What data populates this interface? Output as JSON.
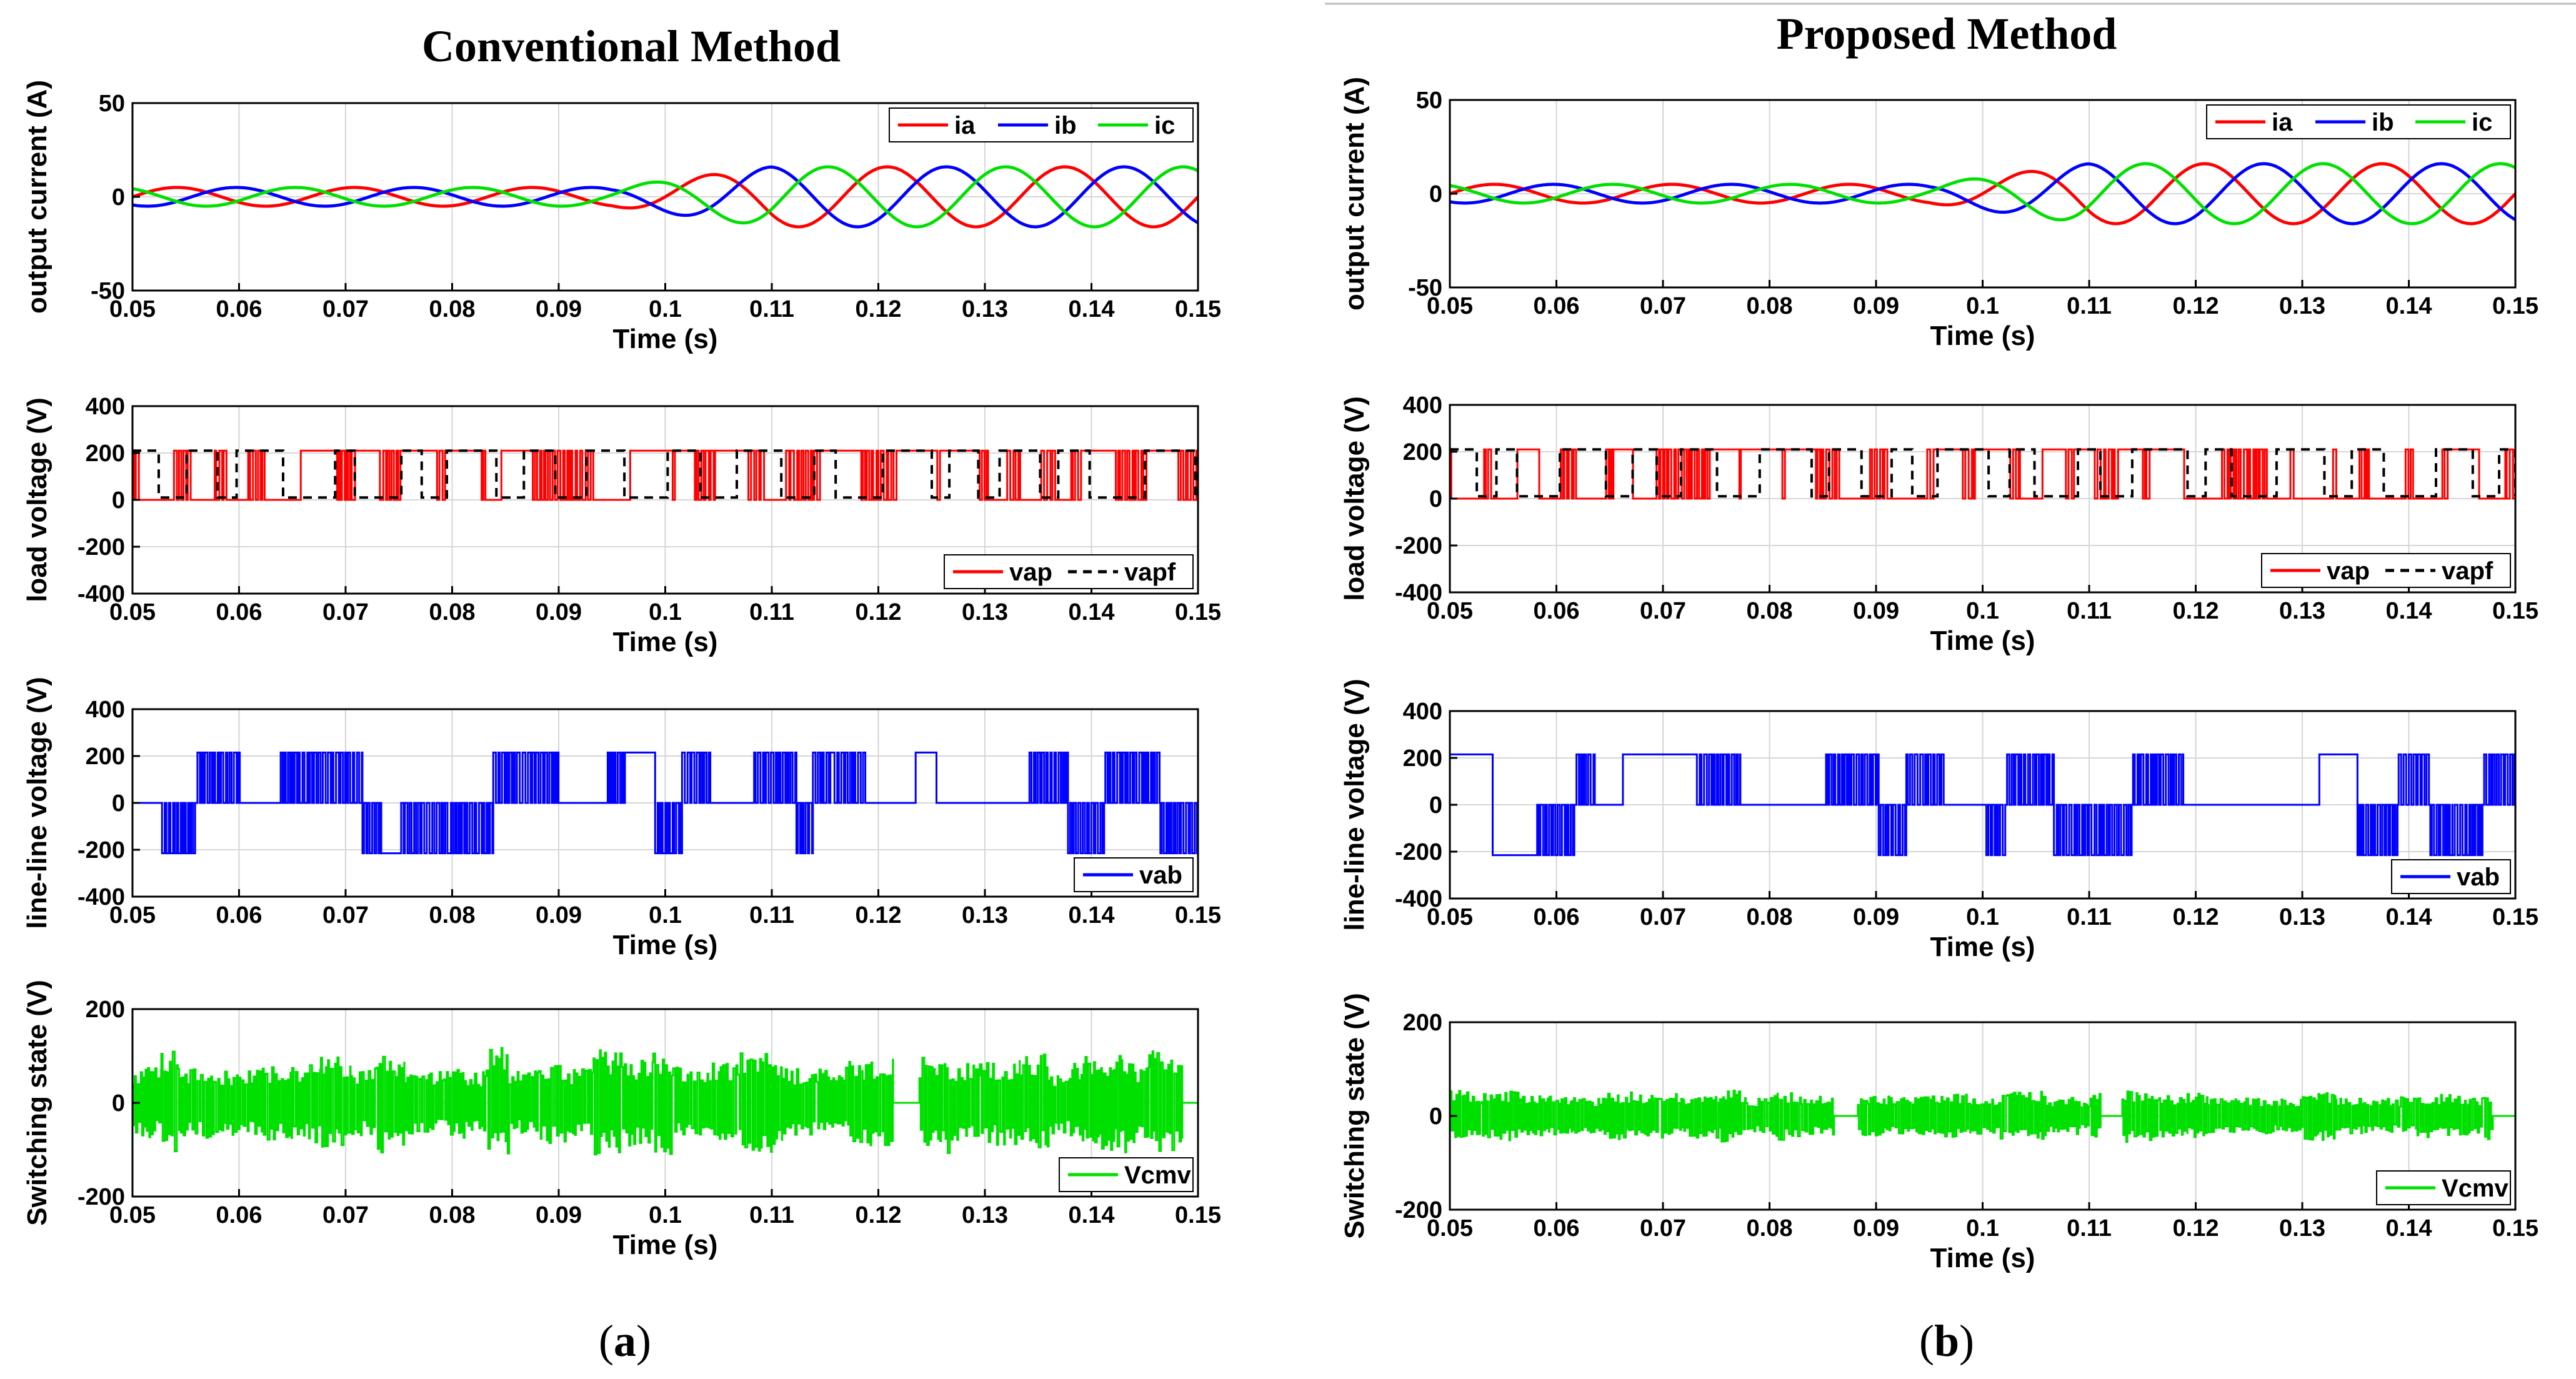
{
  "panels": [
    {
      "title": "Conventional Method",
      "label_open": "(",
      "label_letter": "a",
      "label_close": ")"
    },
    {
      "title": "Proposed Method",
      "label_open": "(",
      "label_letter": "b",
      "label_close": ")"
    }
  ],
  "chart_data": [
    {
      "panel": "a",
      "row": 0,
      "type": "line",
      "xlabel": "Time (s)",
      "ylabel": "output current (A)",
      "xlim": [
        0.05,
        0.15
      ],
      "ylim": [
        -50,
        50
      ],
      "xticks": [
        0.05,
        0.06,
        0.07,
        0.08,
        0.09,
        0.1,
        0.11,
        0.12,
        0.13,
        0.14,
        0.15
      ],
      "xtick_labels": [
        "0.05",
        "0.06",
        "0.07",
        "0.08",
        "0.09",
        "0.1",
        "0.11",
        "0.12",
        "0.13",
        "0.14",
        "0.15"
      ],
      "yticks": [
        -50,
        0,
        50
      ],
      "ytick_labels": [
        "-50",
        "0",
        "50"
      ],
      "legend_position": "top-right",
      "series": [
        {
          "name": "ia",
          "color": "#ff0000",
          "kind": "sine",
          "freq": 60,
          "phase_deg": 0,
          "amp_before": 5,
          "amp_after": 16,
          "step_time": 0.095,
          "ramp": 0.015
        },
        {
          "name": "ib",
          "color": "#0000ff",
          "kind": "sine",
          "freq": 60,
          "phase_deg": -120,
          "amp_before": 5,
          "amp_after": 16,
          "step_time": 0.095,
          "ramp": 0.015
        },
        {
          "name": "ic",
          "color": "#00e000",
          "kind": "sine",
          "freq": 60,
          "phase_deg": 120,
          "amp_before": 5,
          "amp_after": 16,
          "step_time": 0.095,
          "ramp": 0.015
        }
      ]
    },
    {
      "panel": "a",
      "row": 1,
      "type": "line",
      "xlabel": "Time (s)",
      "ylabel": "load voltage (V)",
      "xlim": [
        0.05,
        0.15
      ],
      "ylim": [
        -400,
        400
      ],
      "xticks": [
        0.05,
        0.06,
        0.07,
        0.08,
        0.09,
        0.1,
        0.11,
        0.12,
        0.13,
        0.14,
        0.15
      ],
      "xtick_labels": [
        "0.05",
        "0.06",
        "0.07",
        "0.08",
        "0.09",
        "0.1",
        "0.11",
        "0.12",
        "0.13",
        "0.14",
        "0.15"
      ],
      "yticks": [
        -400,
        -200,
        0,
        200,
        400
      ],
      "ytick_labels": [
        "-400",
        "-200",
        "0",
        "200",
        "400"
      ],
      "legend_position": "bottom-right",
      "series": [
        {
          "name": "vap",
          "color": "#ff0000",
          "kind": "pwm",
          "high": 210,
          "low": 0,
          "seed": 11
        },
        {
          "name": "vapf",
          "color": "#000000",
          "kind": "filtered",
          "dash": true,
          "high": 210,
          "low": 0,
          "seed": 11
        }
      ]
    },
    {
      "panel": "a",
      "row": 2,
      "type": "line",
      "xlabel": "Time (s)",
      "ylabel": "line-line voltage (V)",
      "xlim": [
        0.05,
        0.15
      ],
      "ylim": [
        -400,
        400
      ],
      "xticks": [
        0.05,
        0.06,
        0.07,
        0.08,
        0.09,
        0.1,
        0.11,
        0.12,
        0.13,
        0.14,
        0.15
      ],
      "xtick_labels": [
        "0.05",
        "0.06",
        "0.07",
        "0.08",
        "0.09",
        "0.1",
        "0.11",
        "0.12",
        "0.13",
        "0.14",
        "0.15"
      ],
      "yticks": [
        -400,
        -200,
        0,
        200,
        400
      ],
      "ytick_labels": [
        "-400",
        "-200",
        "0",
        "200",
        "400"
      ],
      "legend_position": "bottom-right",
      "series": [
        {
          "name": "vab",
          "color": "#0000ff",
          "kind": "bipolar",
          "high": 215,
          "low": -215,
          "seed": 23
        }
      ]
    },
    {
      "panel": "a",
      "row": 3,
      "type": "line",
      "xlabel": "Time (s)",
      "ylabel": "Switching state (V)",
      "xlim": [
        0.05,
        0.15
      ],
      "ylim": [
        -200,
        200
      ],
      "xticks": [
        0.05,
        0.06,
        0.07,
        0.08,
        0.09,
        0.1,
        0.11,
        0.12,
        0.13,
        0.14,
        0.15
      ],
      "xtick_labels": [
        "0.05",
        "0.06",
        "0.07",
        "0.08",
        "0.09",
        "0.1",
        "0.11",
        "0.12",
        "0.13",
        "0.14",
        "0.15"
      ],
      "yticks": [
        -200,
        0,
        200
      ],
      "ytick_labels": [
        "-200",
        "0",
        "200"
      ],
      "legend_position": "bottom-right",
      "series": [
        {
          "name": "Vcmv",
          "color": "#00e000",
          "kind": "cmv",
          "peak": 120,
          "seed": 37
        }
      ]
    },
    {
      "panel": "b",
      "row": 0,
      "type": "line",
      "xlabel": "Time (s)",
      "ylabel": "output current (A)",
      "xlim": [
        0.05,
        0.15
      ],
      "ylim": [
        -50,
        50
      ],
      "xticks": [
        0.05,
        0.06,
        0.07,
        0.08,
        0.09,
        0.1,
        0.11,
        0.12,
        0.13,
        0.14,
        0.15
      ],
      "xtick_labels": [
        "0.05",
        "0.06",
        "0.07",
        "0.08",
        "0.09",
        "0.1",
        "0.11",
        "0.12",
        "0.13",
        "0.14",
        "0.15"
      ],
      "yticks": [
        -50,
        0,
        50
      ],
      "ytick_labels": [
        "-50",
        "0",
        "50"
      ],
      "legend_position": "top-right",
      "series": [
        {
          "name": "ia",
          "color": "#ff0000",
          "kind": "sine",
          "freq": 60,
          "phase_deg": 0,
          "amp_before": 5,
          "amp_after": 16,
          "step_time": 0.095,
          "ramp": 0.015
        },
        {
          "name": "ib",
          "color": "#0000ff",
          "kind": "sine",
          "freq": 60,
          "phase_deg": -120,
          "amp_before": 5,
          "amp_after": 16,
          "step_time": 0.095,
          "ramp": 0.015
        },
        {
          "name": "ic",
          "color": "#00e000",
          "kind": "sine",
          "freq": 60,
          "phase_deg": 120,
          "amp_before": 5,
          "amp_after": 16,
          "step_time": 0.095,
          "ramp": 0.015
        }
      ]
    },
    {
      "panel": "b",
      "row": 1,
      "type": "line",
      "xlabel": "Time (s)",
      "ylabel": "load voltage (V)",
      "xlim": [
        0.05,
        0.15
      ],
      "ylim": [
        -400,
        400
      ],
      "xticks": [
        0.05,
        0.06,
        0.07,
        0.08,
        0.09,
        0.1,
        0.11,
        0.12,
        0.13,
        0.14,
        0.15
      ],
      "xtick_labels": [
        "0.05",
        "0.06",
        "0.07",
        "0.08",
        "0.09",
        "0.1",
        "0.11",
        "0.12",
        "0.13",
        "0.14",
        "0.15"
      ],
      "yticks": [
        -400,
        -200,
        0,
        200,
        400
      ],
      "ytick_labels": [
        "-400",
        "-200",
        "0",
        "200",
        "400"
      ],
      "legend_position": "bottom-right",
      "series": [
        {
          "name": "vap",
          "color": "#ff0000",
          "kind": "pwm",
          "high": 210,
          "low": 0,
          "seed": 53
        },
        {
          "name": "vapf",
          "color": "#000000",
          "kind": "filtered",
          "dash": true,
          "high": 210,
          "low": 0,
          "seed": 53
        }
      ]
    },
    {
      "panel": "b",
      "row": 2,
      "type": "line",
      "xlabel": "Time (s)",
      "ylabel": "line-line voltage (V)",
      "xlim": [
        0.05,
        0.15
      ],
      "ylim": [
        -400,
        400
      ],
      "xticks": [
        0.05,
        0.06,
        0.07,
        0.08,
        0.09,
        0.1,
        0.11,
        0.12,
        0.13,
        0.14,
        0.15
      ],
      "xtick_labels": [
        "0.05",
        "0.06",
        "0.07",
        "0.08",
        "0.09",
        "0.1",
        "0.11",
        "0.12",
        "0.13",
        "0.14",
        "0.15"
      ],
      "yticks": [
        -400,
        -200,
        0,
        200,
        400
      ],
      "ytick_labels": [
        "-400",
        "-200",
        "0",
        "200",
        "400"
      ],
      "legend_position": "bottom-right",
      "series": [
        {
          "name": "vab",
          "color": "#0000ff",
          "kind": "bipolar",
          "high": 215,
          "low": -215,
          "seed": 71
        }
      ]
    },
    {
      "panel": "b",
      "row": 3,
      "type": "line",
      "xlabel": "Time (s)",
      "ylabel": "Switching state (V)",
      "xlim": [
        0.05,
        0.15
      ],
      "ylim": [
        -200,
        200
      ],
      "xticks": [
        0.05,
        0.06,
        0.07,
        0.08,
        0.09,
        0.1,
        0.11,
        0.12,
        0.13,
        0.14,
        0.15
      ],
      "xtick_labels": [
        "0.05",
        "0.06",
        "0.07",
        "0.08",
        "0.09",
        "0.1",
        "0.11",
        "0.12",
        "0.13",
        "0.14",
        "0.15"
      ],
      "yticks": [
        -200,
        0,
        200
      ],
      "ytick_labels": [
        "-200",
        "0",
        "200"
      ],
      "legend_position": "bottom-right",
      "series": [
        {
          "name": "Vcmv",
          "color": "#00e000",
          "kind": "cmv",
          "peak": 60,
          "seed": 89
        }
      ]
    }
  ]
}
